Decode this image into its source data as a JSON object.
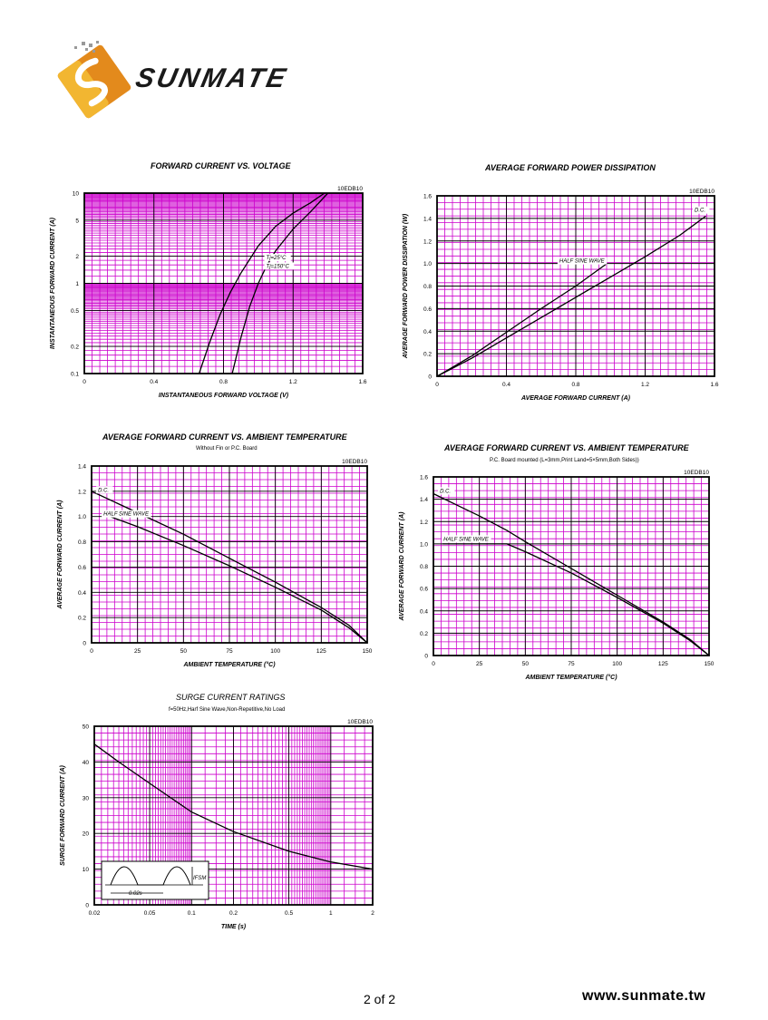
{
  "brand": {
    "name": "SUNMATE",
    "logo_colors": {
      "orange": "#e38a1c",
      "yellow": "#f2b631",
      "dark": "#1a1a1a"
    }
  },
  "footer": {
    "page": "2 of 2",
    "url": "www.sunmate.tw"
  },
  "colors": {
    "grid": "#cc00cc",
    "frame": "#000000",
    "curve": "#000000"
  },
  "chart_data": [
    {
      "id": "fwd",
      "type": "line",
      "title": "FORWARD CURRENT VS. VOLTAGE",
      "subtitle": "",
      "part": "10EDB10",
      "xlabel": "INSTANTANEOUS FORWARD VOLTAGE (V)",
      "ylabel": "INSTANTANEOUS FORWARD CURRENT (A)",
      "xscale": "linear",
      "yscale": "log",
      "xlim": [
        0,
        1.6
      ],
      "ylim": [
        0.1,
        10
      ],
      "xticks": [
        0,
        0.4,
        0.8,
        1.2,
        1.6
      ],
      "xtick_labels": [
        "0",
        "0.4",
        "0.8",
        "1.2",
        "1.6"
      ],
      "yticks": [
        0.1,
        0.2,
        0.5,
        1,
        2,
        5,
        10
      ],
      "ytick_labels": [
        "0.1",
        "0.2",
        "0.5",
        "1",
        "2",
        "5",
        "10"
      ],
      "grid": true,
      "series": [
        {
          "name": "Tj=150°C",
          "x": [
            0.66,
            0.72,
            0.78,
            0.84,
            0.9,
            1.0,
            1.1,
            1.2,
            1.3,
            1.38
          ],
          "y": [
            0.1,
            0.22,
            0.45,
            0.8,
            1.3,
            2.6,
            4.3,
            6.0,
            7.8,
            10
          ]
        },
        {
          "name": "Tj=25°C",
          "x": [
            0.85,
            0.9,
            0.95,
            1.0,
            1.05,
            1.1,
            1.2,
            1.3,
            1.4
          ],
          "y": [
            0.1,
            0.25,
            0.55,
            1.0,
            1.6,
            2.3,
            4.0,
            6.2,
            10
          ]
        }
      ],
      "annotations": [
        {
          "label": "Tj=25°C",
          "x": 1.04,
          "y": 1.8
        },
        {
          "label": "Tj=150°C",
          "x": 1.04,
          "y": 1.45
        }
      ]
    },
    {
      "id": "pwr",
      "type": "line",
      "title": "AVERAGE FORWARD POWER DISSIPATION",
      "subtitle": "",
      "part": "10EDB10",
      "xlabel": "AVERAGE FORWARD CURRENT (A)",
      "ylabel": "AVERAGE FORWARD POWER DISSIPATION (W)",
      "xscale": "linear",
      "yscale": "linear",
      "xlim": [
        0,
        1.6
      ],
      "ylim": [
        0,
        1.6
      ],
      "xticks": [
        0,
        0.4,
        0.8,
        1.2,
        1.6
      ],
      "xtick_labels": [
        "0",
        "0.4",
        "0.8",
        "1.2",
        "1.6"
      ],
      "yticks": [
        0,
        0.2,
        0.4,
        0.6,
        0.8,
        1.0,
        1.2,
        1.4,
        1.6
      ],
      "ytick_labels": [
        "0",
        "0.2",
        "0.4",
        "0.6",
        "0.8",
        "1.0",
        "1.2",
        "1.4",
        "1.6"
      ],
      "grid": true,
      "series": [
        {
          "name": "D.C.",
          "x": [
            0,
            0.2,
            0.4,
            0.6,
            0.8,
            1.0,
            1.2,
            1.4,
            1.55
          ],
          "y": [
            0,
            0.16,
            0.34,
            0.52,
            0.7,
            0.88,
            1.06,
            1.25,
            1.42
          ]
        },
        {
          "name": "HALF SINE WAVE",
          "x": [
            0,
            0.2,
            0.4,
            0.6,
            0.8,
            0.98
          ],
          "y": [
            0,
            0.18,
            0.39,
            0.6,
            0.8,
            1.0
          ]
        }
      ],
      "annotations": [
        {
          "label": "D.C.",
          "x": 1.48,
          "y": 1.45
        },
        {
          "label": "HALF SINE WAVE",
          "x": 0.7,
          "y": 1.0
        }
      ]
    },
    {
      "id": "amb1",
      "type": "line",
      "title": "AVERAGE FORWARD CURRENT VS. AMBIENT TEMPERATURE",
      "subtitle": "Without Fin or P.C. Board",
      "part": "10EDB10",
      "xlabel": "AMBIENT TEMPERATURE (°C)",
      "ylabel": "AVERAGE FORWARD CURRENT (A)",
      "xscale": "linear",
      "yscale": "linear",
      "xlim": [
        0,
        150
      ],
      "ylim": [
        0,
        1.4
      ],
      "xticks": [
        0,
        25,
        50,
        75,
        100,
        125,
        150
      ],
      "xtick_labels": [
        "0",
        "25",
        "50",
        "75",
        "100",
        "125",
        "150"
      ],
      "yticks": [
        0,
        0.2,
        0.4,
        0.6,
        0.8,
        1.0,
        1.2,
        1.4
      ],
      "ytick_labels": [
        "0",
        "0.2",
        "0.4",
        "0.6",
        "0.8",
        "1.0",
        "1.2",
        "1.4"
      ],
      "grid": true,
      "series": [
        {
          "name": "D.C.",
          "x": [
            0,
            25,
            50,
            75,
            100,
            125,
            140,
            150
          ],
          "y": [
            1.2,
            1.03,
            0.86,
            0.67,
            0.48,
            0.28,
            0.14,
            0.0
          ]
        },
        {
          "name": "HALF SINE WAVE",
          "x": [
            10,
            25,
            50,
            75,
            100,
            125,
            140,
            150
          ],
          "y": [
            1.0,
            0.92,
            0.77,
            0.61,
            0.44,
            0.26,
            0.12,
            0.0
          ]
        }
      ],
      "annotations": [
        {
          "label": "D.C.",
          "x": 3,
          "y": 1.19
        },
        {
          "label": "HALF SINE WAVE",
          "x": 6,
          "y": 1.0
        }
      ]
    },
    {
      "id": "amb2",
      "type": "line",
      "title": "AVERAGE FORWARD CURRENT VS. AMBIENT TEMPERATURE",
      "subtitle": "P.C. Board mounted (L=3mm,Print Land=5×5mm,Both Sides))",
      "part": "10EDB10",
      "xlabel": "AMBIENT TEMPERATURE (°C)",
      "ylabel": "AVERAGE FORWARD CURRENT (A)",
      "xscale": "linear",
      "yscale": "linear",
      "xlim": [
        0,
        150
      ],
      "ylim": [
        0,
        1.6
      ],
      "xticks": [
        0,
        25,
        50,
        75,
        100,
        125,
        150
      ],
      "xtick_labels": [
        "0",
        "25",
        "50",
        "75",
        "100",
        "125",
        "150"
      ],
      "yticks": [
        0,
        0.2,
        0.4,
        0.6,
        0.8,
        1.0,
        1.2,
        1.4,
        1.6
      ],
      "ytick_labels": [
        "0",
        "0.2",
        "0.4",
        "0.6",
        "0.8",
        "1.0",
        "1.2",
        "1.4",
        "1.6"
      ],
      "grid": true,
      "series": [
        {
          "name": "D.C.",
          "x": [
            0,
            25,
            40,
            50,
            75,
            100,
            125,
            140,
            150
          ],
          "y": [
            1.45,
            1.25,
            1.12,
            1.02,
            0.78,
            0.54,
            0.3,
            0.14,
            0.0
          ]
        },
        {
          "name": "HALF SINE WAVE",
          "x": [
            5,
            40,
            50,
            75,
            100,
            125,
            140,
            150
          ],
          "y": [
            1.0,
            1.0,
            0.93,
            0.74,
            0.52,
            0.29,
            0.13,
            0.0
          ]
        }
      ],
      "annotations": [
        {
          "label": "D.C.",
          "x": 3,
          "y": 1.45
        },
        {
          "label": "HALF SINE WAVE",
          "x": 5,
          "y": 1.02
        }
      ]
    },
    {
      "id": "surge",
      "type": "line",
      "title": "SURGE CURRENT RATINGS",
      "subtitle": "f=50Hz,Harf Sine Wave,Non-Repetitive,No Load",
      "part": "10EDB10",
      "xlabel": "TIME (s)",
      "ylabel": "SURGE FORWARD CURRENT (A)",
      "xscale": "log",
      "yscale": "linear",
      "xlim": [
        0.02,
        2
      ],
      "ylim": [
        0,
        50
      ],
      "xticks": [
        0.02,
        0.05,
        0.1,
        0.2,
        0.5,
        1,
        2
      ],
      "xtick_labels": [
        "0.02",
        "0.05",
        "0.1",
        "0.2",
        "0.5",
        "1",
        "2"
      ],
      "yticks": [
        0,
        10,
        20,
        30,
        40,
        50
      ],
      "ytick_labels": [
        "0",
        "10",
        "20",
        "30",
        "40",
        "50"
      ],
      "grid": true,
      "series": [
        {
          "name": "",
          "x": [
            0.02,
            0.03,
            0.05,
            0.1,
            0.2,
            0.5,
            1,
            2
          ],
          "y": [
            45,
            40,
            34,
            26,
            20.5,
            15,
            12,
            10
          ]
        }
      ],
      "inset": {
        "period_label": "0.02s",
        "peak_label": "IFSM"
      }
    }
  ]
}
